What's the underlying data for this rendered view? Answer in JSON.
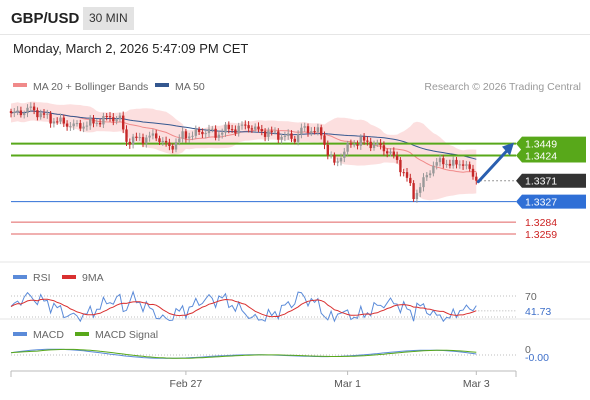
{
  "header": {
    "symbol": "GBP/USD",
    "timeframe": "30 MIN"
  },
  "datetime": "Monday, March 2, 2026 5:47:09 PM CET",
  "legend": {
    "ma20": "MA 20 + Bollinger Bands",
    "ma50": "MA 50",
    "rsi": "RSI",
    "rsi_ma": "9MA",
    "macd": "MACD",
    "macd_signal": "MACD Signal"
  },
  "copyright": "Research © 2026 Trading Central",
  "colors": {
    "ma20": "#f08a8a",
    "bands": "#fcd9d9",
    "ma50": "#34578f",
    "up": "#999999",
    "down": "#c62828",
    "pivot": "#58a81a",
    "support": "#2f6fd6",
    "red_level": "#e06060",
    "current": "#333333",
    "rsi": "#5b8bd9",
    "rsi_ma": "#d93030",
    "macd": "#5b8bd9",
    "macd_signal": "#58a81a"
  },
  "chart_data": [
    {
      "type": "candlestick",
      "name": "price",
      "ylim": [
        1.324,
        1.3545
      ],
      "x_labels": [
        "Feb 27",
        "Mar 1",
        "Mar 3"
      ],
      "levels": [
        {
          "label": "1.3449",
          "value": 1.3449,
          "kind": "pivot"
        },
        {
          "label": "1.3424",
          "value": 1.3424,
          "kind": "pivot"
        },
        {
          "label": "1.3371",
          "value": 1.3371,
          "kind": "current"
        },
        {
          "label": "1.3327",
          "value": 1.3327,
          "kind": "support"
        },
        {
          "label": "1.3284",
          "value": 1.3284,
          "kind": "red"
        },
        {
          "label": "1.3259",
          "value": 1.3259,
          "kind": "red"
        }
      ],
      "anchors_close": [
        [
          0,
          1.351
        ],
        [
          6,
          1.3522
        ],
        [
          12,
          1.35
        ],
        [
          20,
          1.3485
        ],
        [
          26,
          1.3495
        ],
        [
          30,
          1.3505
        ],
        [
          33,
          1.35
        ],
        [
          35,
          1.3455
        ],
        [
          40,
          1.346
        ],
        [
          44,
          1.3465
        ],
        [
          48,
          1.344
        ],
        [
          52,
          1.3465
        ],
        [
          56,
          1.347
        ],
        [
          60,
          1.3478
        ],
        [
          62,
          1.3465
        ],
        [
          64,
          1.3478
        ],
        [
          68,
          1.348
        ],
        [
          72,
          1.3488
        ],
        [
          74,
          1.3478
        ],
        [
          78,
          1.3472
        ],
        [
          82,
          1.3465
        ],
        [
          86,
          1.346
        ],
        [
          88,
          1.3478
        ],
        [
          90,
          1.348
        ],
        [
          94,
          1.347
        ],
        [
          96,
          1.343
        ],
        [
          98,
          1.3405
        ],
        [
          100,
          1.3425
        ],
        [
          103,
          1.3448
        ],
        [
          106,
          1.3455
        ],
        [
          110,
          1.3448
        ],
        [
          114,
          1.3435
        ],
        [
          117,
          1.3412
        ],
        [
          120,
          1.3375
        ],
        [
          122,
          1.334
        ],
        [
          124,
          1.3358
        ],
        [
          126,
          1.3382
        ],
        [
          128,
          1.3405
        ],
        [
          131,
          1.3412
        ],
        [
          134,
          1.3404
        ],
        [
          137,
          1.341
        ],
        [
          138,
          1.34
        ],
        [
          141,
          1.3371
        ]
      ]
    },
    {
      "type": "line",
      "name": "RSI",
      "levels": [
        70,
        30
      ],
      "current_value": "41.73",
      "level_labels": [
        "70"
      ]
    },
    {
      "type": "line",
      "name": "MACD",
      "current_value": "-0.00",
      "level_labels": [
        "0"
      ]
    }
  ]
}
